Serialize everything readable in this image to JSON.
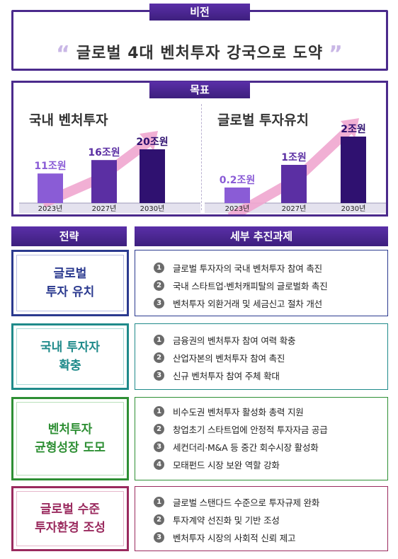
{
  "vision": {
    "tab": "비전",
    "open_quote": "“",
    "text": "글로벌 4대 벤처투자 강국으로 도약",
    "close_quote": "”"
  },
  "goals": {
    "tab": "목표",
    "left_title": "국내 벤처투자",
    "right_title": "글로벌 투자유치"
  },
  "chart_data": [
    {
      "type": "bar",
      "title": "국내 벤처투자",
      "categories": [
        "2023년",
        "2027년",
        "2030년"
      ],
      "values": [
        11,
        16,
        20
      ],
      "data_labels": [
        "11조원",
        "16조원",
        "20조원"
      ],
      "bar_colors": [
        "#8a5cd6",
        "#5b2fa3",
        "#2f1170"
      ],
      "label_colors": [
        "#8a5cd6",
        "#5b2fa3",
        "#2f1170"
      ],
      "arrow_color": "#f0a6cf",
      "ylim": [
        0,
        25
      ]
    },
    {
      "type": "bar",
      "title": "글로벌 투자유치",
      "categories": [
        "2023년",
        "2027년",
        "2030년"
      ],
      "values": [
        0.2,
        1,
        2
      ],
      "data_labels": [
        "0.2조원",
        "1조원",
        "2조원"
      ],
      "bar_colors": [
        "#8a5cd6",
        "#5b2fa3",
        "#2f1170"
      ],
      "label_colors": [
        "#8a5cd6",
        "#5b2fa3",
        "#2f1170"
      ],
      "arrow_color": "#f0a6cf",
      "ylim": [
        0,
        2.5
      ]
    }
  ],
  "headers": {
    "strategy": "전략",
    "tasks": "세부 추진과제"
  },
  "rows": [
    {
      "strategy": "글로벌\n투자 유치",
      "color": "#2b3a8f",
      "tasks": [
        {
          "num": "1",
          "text": "글로벌 투자자의 국내 벤처투자 참여 촉진"
        },
        {
          "num": "2",
          "text": "국내 스타트업·벤처캐피탈의 글로벌화 촉진"
        },
        {
          "num": "3",
          "text": "벤처투자 외환거래 및 세금신고 절차 개선"
        }
      ]
    },
    {
      "strategy": "국내 투자자\n확충",
      "color": "#1f8a8a",
      "tasks": [
        {
          "num": "1",
          "text": "금융권의 벤처투자 참여 여력 확충"
        },
        {
          "num": "2",
          "text": "산업자본의 벤처투자 참여 촉진"
        },
        {
          "num": "3",
          "text": "신규 벤처투자 참여 주체 확대"
        }
      ]
    },
    {
      "strategy": "벤처투자\n균형성장 도모",
      "color": "#2e8f34",
      "tasks": [
        {
          "num": "1",
          "text": "비수도권 벤처투자 활성화 총력 지원"
        },
        {
          "num": "2",
          "text": "창업초기 스타트업에 안정적 투자자금 공급"
        },
        {
          "num": "3",
          "text": "세컨더리·M&A 등 중간 회수시장 활성화"
        },
        {
          "num": "4",
          "text": "모태펀드 시장 보완 역할 강화"
        }
      ]
    },
    {
      "strategy": "글로벌 수준\n투자환경 조성",
      "color": "#9a2a5e",
      "tasks": [
        {
          "num": "1",
          "text": "글로벌 스탠다드 수준으로 투자규제 완화"
        },
        {
          "num": "2",
          "text": "투자계약 선진화 및 기반 조성"
        },
        {
          "num": "3",
          "text": "벤처투자 시장의 사회적 신뢰 제고"
        }
      ]
    }
  ]
}
